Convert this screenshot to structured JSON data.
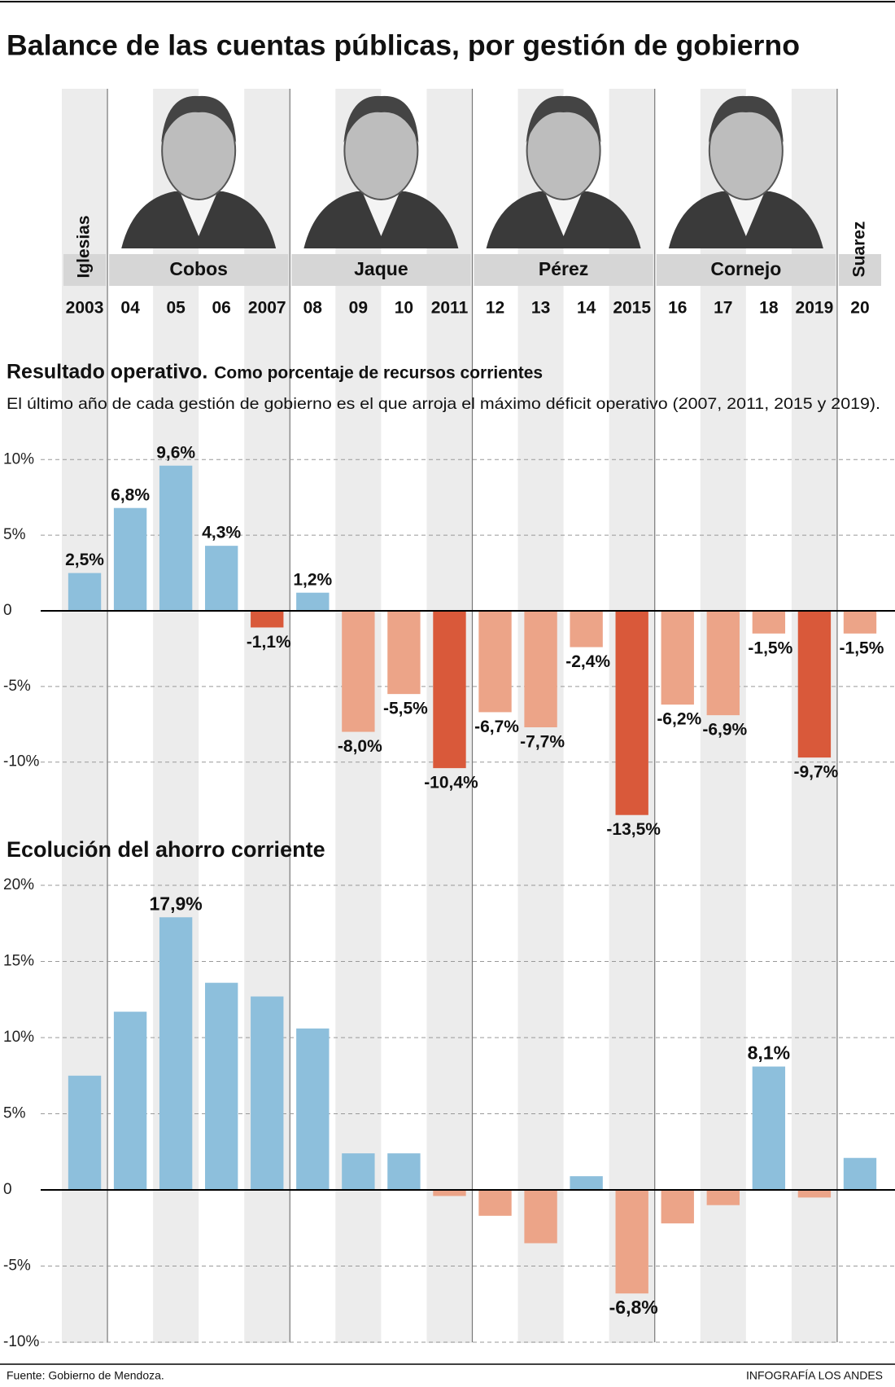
{
  "title": "Balance de las cuentas públicas, por gestión de gobierno",
  "governors": [
    "Iglesias",
    "Cobos",
    "Jaque",
    "Pérez",
    "Cornejo",
    "Suarez"
  ],
  "chart_data": [
    {
      "type": "bar",
      "title": "Resultado operativo.",
      "subtitle": "Como porcentaje de recursos corrientes",
      "note": "El último año de cada gestión de gobierno es el que arroja el máximo déficit operativo (2007, 2011, 2015 y 2019).",
      "categories": [
        "2003",
        "04",
        "05",
        "06",
        "2007",
        "08",
        "09",
        "10",
        "2011",
        "12",
        "13",
        "14",
        "2015",
        "16",
        "17",
        "18",
        "2019",
        "20"
      ],
      "values": [
        2.5,
        6.8,
        9.6,
        4.3,
        -1.1,
        1.2,
        -8.0,
        -5.5,
        -10.4,
        -6.7,
        -7.7,
        -2.4,
        -13.5,
        -6.2,
        -6.9,
        -1.5,
        -9.7,
        -1.5
      ],
      "value_labels": [
        "2,5%",
        "6,8%",
        "9,6%",
        "4,3%",
        "-1,1%",
        "1,2%",
        "-8,0%",
        "-5,5%",
        "-10,4%",
        "-6,7%",
        "-7,7%",
        "-2,4%",
        "-13,5%",
        "-6,2%",
        "-6,9%",
        "-1,5%",
        "-9,7%",
        "-1,5%"
      ],
      "colors": [
        "#8dbfdc",
        "#8dbfdc",
        "#8dbfdc",
        "#8dbfdc",
        "#d9593a",
        "#8dbfdc",
        "#eca488",
        "#eca488",
        "#d9593a",
        "#eca488",
        "#eca488",
        "#eca488",
        "#d9593a",
        "#eca488",
        "#eca488",
        "#eca488",
        "#d9593a",
        "#eca488"
      ],
      "ylim": [
        -13.5,
        10
      ],
      "yticks": [
        {
          "value": 10,
          "label": "10%"
        },
        {
          "value": 5,
          "label": "5%"
        },
        0,
        {
          "value": -5,
          "label": "-5%"
        },
        {
          "value": -10,
          "label": "-10%"
        }
      ],
      "grid": true
    },
    {
      "type": "bar",
      "title": "Ecolución del ahorro corriente",
      "values": [
        7.5,
        11.7,
        17.9,
        13.6,
        12.7,
        10.6,
        2.4,
        2.4,
        -0.4,
        -1.7,
        -3.5,
        0.9,
        -6.8,
        -2.2,
        -1.0,
        8.1,
        -0.5,
        2.1
      ],
      "value_labels": [
        null,
        null,
        "17,9%",
        null,
        null,
        null,
        null,
        null,
        null,
        null,
        null,
        null,
        "-6,8%",
        null,
        null,
        "8,1%",
        null,
        null
      ],
      "colors": [
        "#8dbfdc",
        "#8dbfdc",
        "#8dbfdc",
        "#8dbfdc",
        "#8dbfdc",
        "#8dbfdc",
        "#8dbfdc",
        "#8dbfdc",
        "#eca488",
        "#eca488",
        "#eca488",
        "#8dbfdc",
        "#eca488",
        "#eca488",
        "#eca488",
        "#8dbfdc",
        "#eca488",
        "#8dbfdc"
      ],
      "ylim": [
        -10,
        20
      ],
      "yticks": [
        {
          "value": 20,
          "label": "20%"
        },
        {
          "value": 15,
          "label": "15%"
        },
        {
          "value": 10,
          "label": "10%"
        },
        {
          "value": 5,
          "label": "5%"
        },
        0,
        {
          "value": -5,
          "label": "-5%"
        },
        {
          "value": -10,
          "label": "-10%"
        }
      ],
      "grid": true
    }
  ],
  "footer": {
    "source": "Fuente: Gobierno de Mendoza.",
    "credit": "INFOGRAFÍA LOS ANDES"
  }
}
